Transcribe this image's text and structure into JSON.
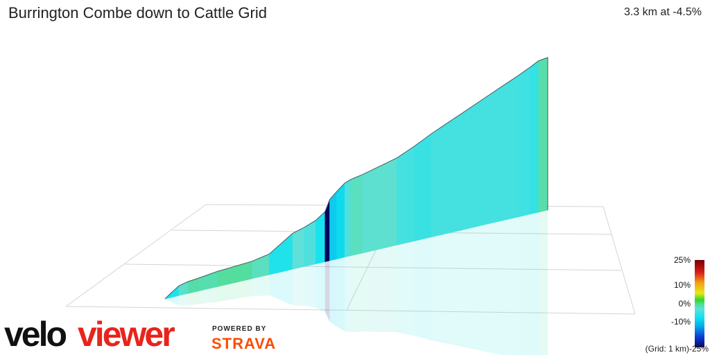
{
  "header": {
    "title": "Burrington Combe down to Cattle Grid",
    "summary": "3.3 km at -4.5%"
  },
  "color_scale": {
    "labels": [
      "25%",
      "10%",
      "0%",
      "-10%"
    ],
    "bottom_label": "-25%",
    "grid_note": "(Grid: 1 km)",
    "stops": [
      {
        "grade": 25,
        "color": "#7a0000"
      },
      {
        "grade": 18,
        "color": "#d81b1b"
      },
      {
        "grade": 12,
        "color": "#f0a015"
      },
      {
        "grade": 6,
        "color": "#e8e81a"
      },
      {
        "grade": 2,
        "color": "#2ed62e"
      },
      {
        "grade": 0,
        "color": "#4fdc8e"
      },
      {
        "grade": -3,
        "color": "#5fe0d8"
      },
      {
        "grade": -8,
        "color": "#10e2f0"
      },
      {
        "grade": -13,
        "color": "#0aa8e8"
      },
      {
        "grade": -19,
        "color": "#0a3cd8"
      },
      {
        "grade": -25,
        "color": "#050560"
      }
    ]
  },
  "logo": {
    "velo": "velo",
    "viewer": "viewer",
    "powered": "POWERED BY",
    "strava": "STRAVA"
  },
  "chart_data": {
    "type": "area",
    "xlim": [
      0,
      3.3
    ],
    "grid_step_km": 1,
    "gradient_colored": true,
    "profile": [
      {
        "d": 0.0,
        "e": 0
      },
      {
        "d": 0.05,
        "e": 4
      },
      {
        "d": 0.12,
        "e": 9
      },
      {
        "d": 0.2,
        "e": 11
      },
      {
        "d": 0.3,
        "e": 12
      },
      {
        "d": 0.45,
        "e": 14
      },
      {
        "d": 0.6,
        "e": 15
      },
      {
        "d": 0.75,
        "e": 16
      },
      {
        "d": 0.9,
        "e": 19
      },
      {
        "d": 1.0,
        "e": 26
      },
      {
        "d": 1.1,
        "e": 33
      },
      {
        "d": 1.2,
        "e": 36
      },
      {
        "d": 1.3,
        "e": 40
      },
      {
        "d": 1.38,
        "e": 46
      },
      {
        "d": 1.42,
        "e": 56
      },
      {
        "d": 1.48,
        "e": 62
      },
      {
        "d": 1.55,
        "e": 68
      },
      {
        "d": 1.6,
        "e": 70
      },
      {
        "d": 1.7,
        "e": 72
      },
      {
        "d": 1.85,
        "e": 76
      },
      {
        "d": 2.0,
        "e": 80
      },
      {
        "d": 2.15,
        "e": 87
      },
      {
        "d": 2.3,
        "e": 95
      },
      {
        "d": 2.45,
        "e": 102
      },
      {
        "d": 2.6,
        "e": 109
      },
      {
        "d": 2.75,
        "e": 116
      },
      {
        "d": 2.9,
        "e": 123
      },
      {
        "d": 3.05,
        "e": 130
      },
      {
        "d": 3.15,
        "e": 135
      },
      {
        "d": 3.22,
        "e": 139
      },
      {
        "d": 3.3,
        "e": 140
      }
    ]
  }
}
